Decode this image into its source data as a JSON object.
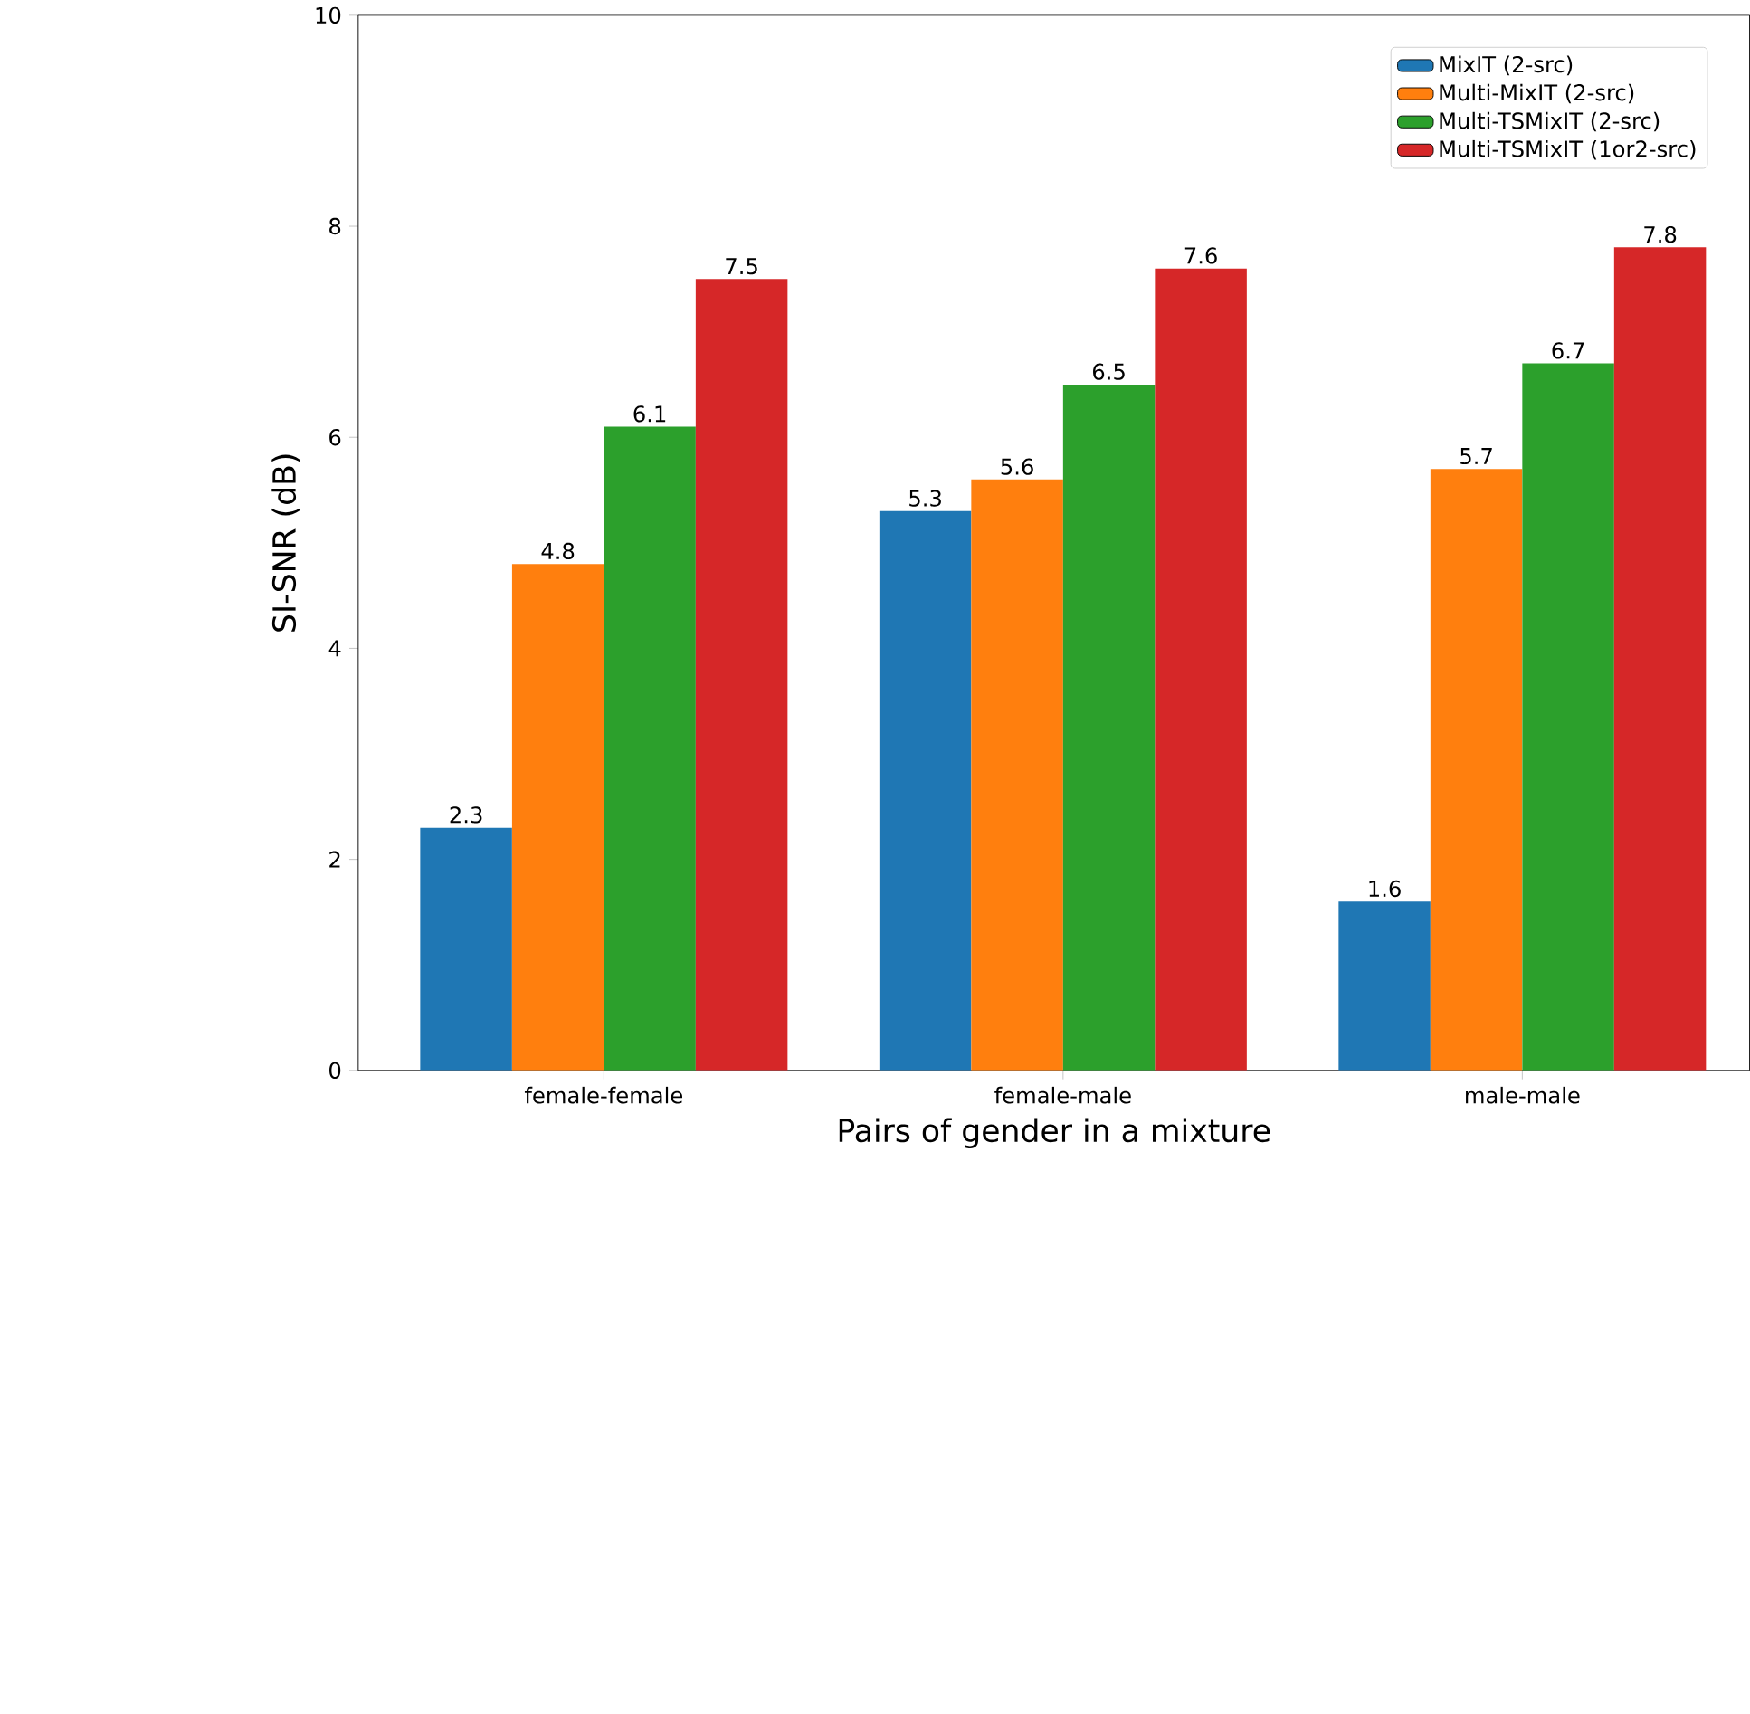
{
  "chart_data": {
    "type": "bar",
    "xlabel": "Pairs of gender in a mixture",
    "ylabel": "SI-SNR (dB)",
    "categories": [
      "female-female",
      "female-male",
      "male-male"
    ],
    "series": [
      {
        "name": "MixIT (2-src)",
        "color": "#1f77b4",
        "values": [
          2.3,
          5.3,
          1.6
        ]
      },
      {
        "name": "Multi-MixIT (2-src)",
        "color": "#ff7f0e",
        "values": [
          4.8,
          5.6,
          5.7
        ]
      },
      {
        "name": "Multi-TSMixIT (2-src)",
        "color": "#2ca02c",
        "values": [
          6.1,
          6.5,
          6.7
        ]
      },
      {
        "name": "Multi-TSMixIT (1or2-src)",
        "color": "#d62728",
        "values": [
          7.5,
          7.6,
          7.8
        ]
      }
    ],
    "ylim": [
      0,
      10
    ],
    "yticks": [
      0,
      2,
      4,
      6,
      8,
      10
    ],
    "data_labels": true,
    "legend": "top right",
    "grid": false
  }
}
